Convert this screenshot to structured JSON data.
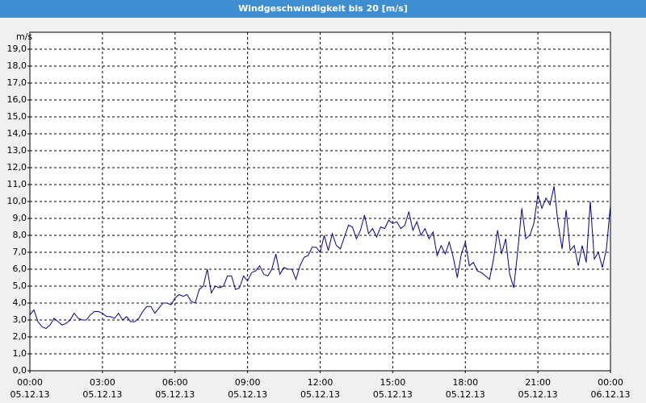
{
  "chart_data": {
    "type": "line",
    "title": "Windgeschwindigkeit bis 20 [m/s]",
    "y_label": "m/s",
    "xlim": [
      0,
      1440
    ],
    "xticks": [
      {
        "value": 0,
        "label": [
          "00:00",
          "05.12.13"
        ]
      },
      {
        "value": 180,
        "label": [
          "03:00",
          "05.12.13"
        ]
      },
      {
        "value": 360,
        "label": [
          "06:00",
          "05.12.13"
        ]
      },
      {
        "value": 540,
        "label": [
          "09:00",
          "05.12.13"
        ]
      },
      {
        "value": 720,
        "label": [
          "12:00",
          "05.12.13"
        ]
      },
      {
        "value": 900,
        "label": [
          "15:00",
          "05.12.13"
        ]
      },
      {
        "value": 1080,
        "label": [
          "18:00",
          "05.12.13"
        ]
      },
      {
        "value": 1260,
        "label": [
          "21:00",
          "05.12.13"
        ]
      },
      {
        "value": 1440,
        "label": [
          "00:00",
          "06.12.13"
        ]
      }
    ],
    "ylim": [
      0,
      20
    ],
    "yticks": [
      {
        "value": 0,
        "label": "0,0"
      },
      {
        "value": 1,
        "label": "1,0"
      },
      {
        "value": 2,
        "label": "2,0"
      },
      {
        "value": 3,
        "label": "3,0"
      },
      {
        "value": 4,
        "label": "4,0"
      },
      {
        "value": 5,
        "label": "5,0"
      },
      {
        "value": 6,
        "label": "6,0"
      },
      {
        "value": 7,
        "label": "7,0"
      },
      {
        "value": 8,
        "label": "8,0"
      },
      {
        "value": 9,
        "label": "9,0"
      },
      {
        "value": 10,
        "label": "10,0"
      },
      {
        "value": 11,
        "label": "11,0"
      },
      {
        "value": 12,
        "label": "12,0"
      },
      {
        "value": 13,
        "label": "13,0"
      },
      {
        "value": 14,
        "label": "14,0"
      },
      {
        "value": 15,
        "label": "15,0"
      },
      {
        "value": 16,
        "label": "16,0"
      },
      {
        "value": 17,
        "label": "17,0"
      },
      {
        "value": 18,
        "label": "18,0"
      },
      {
        "value": 19,
        "label": "19,0"
      }
    ],
    "grid": true,
    "x": [
      0,
      10,
      20,
      30,
      40,
      50,
      60,
      70,
      80,
      90,
      100,
      110,
      120,
      130,
      140,
      150,
      160,
      170,
      180,
      190,
      200,
      210,
      220,
      230,
      240,
      250,
      260,
      270,
      280,
      290,
      300,
      310,
      320,
      330,
      340,
      350,
      360,
      370,
      380,
      390,
      400,
      410,
      420,
      430,
      440,
      450,
      460,
      470,
      480,
      490,
      500,
      510,
      520,
      530,
      540,
      550,
      560,
      570,
      580,
      590,
      600,
      610,
      620,
      630,
      640,
      650,
      660,
      670,
      680,
      690,
      700,
      710,
      720,
      730,
      740,
      750,
      760,
      770,
      780,
      790,
      800,
      810,
      820,
      830,
      840,
      850,
      860,
      870,
      880,
      890,
      900,
      910,
      920,
      930,
      940,
      950,
      960,
      970,
      980,
      990,
      1000,
      1010,
      1020,
      1030,
      1040,
      1050,
      1060,
      1070,
      1080,
      1090,
      1100,
      1110,
      1120,
      1130,
      1140,
      1150,
      1160,
      1170,
      1180,
      1190,
      1200,
      1210,
      1220,
      1230,
      1240,
      1250,
      1260,
      1270,
      1280,
      1290,
      1300,
      1310,
      1320,
      1330,
      1340,
      1350,
      1360,
      1370,
      1380,
      1390,
      1400,
      1410,
      1420,
      1430,
      1440
    ],
    "series": [
      {
        "color": "#00008b",
        "values": [
          3.3,
          3.6,
          2.9,
          2.6,
          2.5,
          2.7,
          3.1,
          2.9,
          2.7,
          2.8,
          3.0,
          3.4,
          3.1,
          3.0,
          3.0,
          3.3,
          3.5,
          3.5,
          3.4,
          3.2,
          3.2,
          3.1,
          3.4,
          3.0,
          3.2,
          2.9,
          2.9,
          3.1,
          3.5,
          3.8,
          3.8,
          3.4,
          3.7,
          4.0,
          4.0,
          3.9,
          4.3,
          4.5,
          4.4,
          4.5,
          4.1,
          4.0,
          4.8,
          5.0,
          6.0,
          4.6,
          5.0,
          4.9,
          5.0,
          5.6,
          5.6,
          4.8,
          4.9,
          5.6,
          5.3,
          5.8,
          5.9,
          6.2,
          5.7,
          5.6,
          6.0,
          6.9,
          5.7,
          6.1,
          6.0,
          6.0,
          5.4,
          6.2,
          6.7,
          6.8,
          7.3,
          7.3,
          7.0,
          8.0,
          7.1,
          8.1,
          7.4,
          7.2,
          7.9,
          8.6,
          8.5,
          7.8,
          8.3,
          9.2,
          8.1,
          8.4,
          7.9,
          8.5,
          8.4,
          8.9,
          8.7,
          8.8,
          8.4,
          8.6,
          9.4,
          8.3,
          8.8,
          8.0,
          8.4,
          7.8,
          8.2,
          6.8,
          7.4,
          6.9,
          7.6,
          6.7,
          5.5,
          6.9,
          7.6,
          6.2,
          6.4,
          5.9,
          5.8,
          5.6,
          5.4,
          6.6,
          8.3,
          6.9,
          7.8,
          5.7,
          4.9,
          7.1,
          9.6,
          7.8,
          8.0,
          8.7,
          10.4,
          9.6,
          10.2,
          9.8,
          10.9,
          8.7,
          7.2,
          9.5,
          7.1,
          7.4,
          6.2,
          7.4,
          6.4,
          10.0,
          6.6,
          7.0,
          6.1,
          7.2,
          9.8
        ]
      }
    ]
  }
}
